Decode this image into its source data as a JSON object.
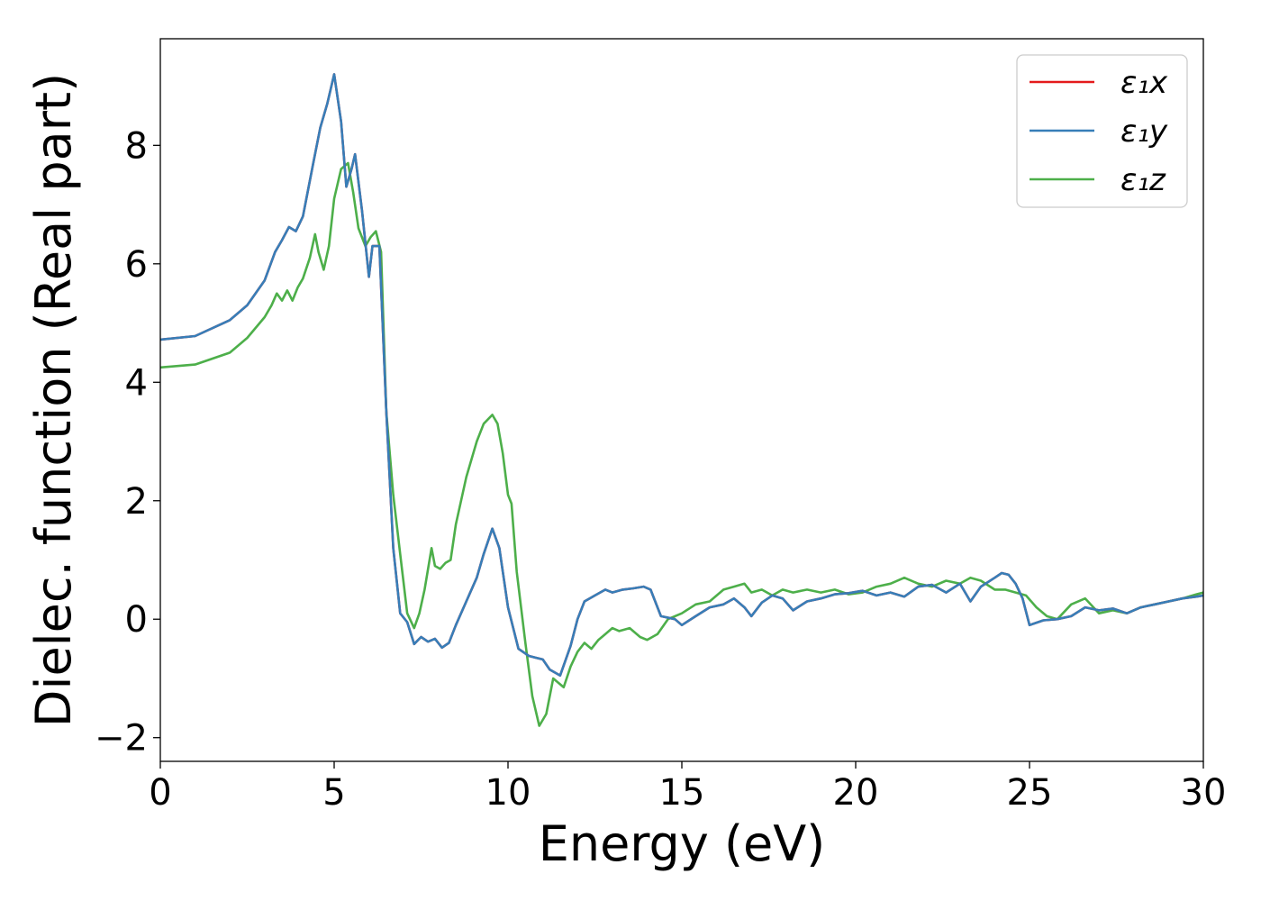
{
  "chart_data": {
    "type": "line",
    "xlabel": "Energy (eV)",
    "ylabel": "Dielec. function (Real part)",
    "xlim": [
      0,
      30
    ],
    "ylim": [
      -2.4,
      9.8
    ],
    "xticks": [
      0,
      5,
      10,
      15,
      20,
      25,
      30
    ],
    "xtick_labels": [
      "0",
      "5",
      "10",
      "15",
      "20",
      "25",
      "30"
    ],
    "yticks": [
      -2,
      0,
      2,
      4,
      6,
      8
    ],
    "ytick_labels": [
      "−2",
      "0",
      "2",
      "4",
      "6",
      "8"
    ],
    "grid": false,
    "legend_position": "top-right",
    "series": [
      {
        "name": "ε₁x",
        "color": "#e41a1c",
        "x": [
          0,
          1,
          2,
          2.5,
          3,
          3.3,
          3.5,
          3.7,
          3.9,
          4.1,
          4.4,
          4.6,
          4.8,
          5,
          5.2,
          5.35,
          5.5,
          5.6,
          5.8,
          6,
          6.1,
          6.3,
          6.5,
          6.7,
          6.9,
          7.1,
          7.3,
          7.5,
          7.7,
          7.9,
          8.1,
          8.3,
          8.5,
          8.8,
          9.1,
          9.3,
          9.55,
          9.75,
          10,
          10.3,
          10.6,
          10.8,
          11,
          11.2,
          11.5,
          11.8,
          12,
          12.2,
          12.5,
          12.8,
          13,
          13.3,
          13.6,
          13.9,
          14.1,
          14.4,
          14.8,
          15,
          15.4,
          15.8,
          16.2,
          16.5,
          16.8,
          17,
          17.3,
          17.6,
          17.9,
          18.2,
          18.6,
          19,
          19.4,
          19.8,
          20.2,
          20.6,
          21,
          21.4,
          21.8,
          22.2,
          22.6,
          23,
          23.3,
          23.6,
          24,
          24.2,
          24.4,
          24.6,
          24.8,
          25,
          25.4,
          25.8,
          26.2,
          26.6,
          27,
          27.4,
          27.8,
          28.2,
          28.6,
          29,
          29.4,
          29.8,
          30
        ],
        "y": [
          4.72,
          4.78,
          5.05,
          5.3,
          5.72,
          6.2,
          6.4,
          6.62,
          6.55,
          6.8,
          7.7,
          8.3,
          8.7,
          9.2,
          8.4,
          7.3,
          7.6,
          7.85,
          6.9,
          5.78,
          6.3,
          6.3,
          3.5,
          1.2,
          0.1,
          -0.05,
          -0.42,
          -0.3,
          -0.38,
          -0.33,
          -0.48,
          -0.4,
          -0.1,
          0.3,
          0.7,
          1.1,
          1.53,
          1.2,
          0.2,
          -0.5,
          -0.62,
          -0.65,
          -0.68,
          -0.85,
          -0.95,
          -0.45,
          0,
          0.3,
          0.4,
          0.5,
          0.45,
          0.5,
          0.52,
          0.55,
          0.5,
          0.05,
          0,
          -0.1,
          0.05,
          0.2,
          0.25,
          0.35,
          0.2,
          0.05,
          0.28,
          0.4,
          0.35,
          0.15,
          0.3,
          0.35,
          0.42,
          0.44,
          0.48,
          0.4,
          0.45,
          0.38,
          0.55,
          0.58,
          0.45,
          0.6,
          0.3,
          0.55,
          0.7,
          0.78,
          0.75,
          0.6,
          0.35,
          -0.1,
          -0.02,
          0,
          0.05,
          0.2,
          0.15,
          0.18,
          0.1,
          0.2,
          0.25,
          0.3,
          0.35,
          0.38,
          0.4
        ]
      },
      {
        "name": "ε₁y",
        "color": "#377eb8",
        "x": [
          0,
          1,
          2,
          2.5,
          3,
          3.3,
          3.5,
          3.7,
          3.9,
          4.1,
          4.4,
          4.6,
          4.8,
          5,
          5.2,
          5.35,
          5.5,
          5.6,
          5.8,
          6,
          6.1,
          6.3,
          6.5,
          6.7,
          6.9,
          7.1,
          7.3,
          7.5,
          7.7,
          7.9,
          8.1,
          8.3,
          8.5,
          8.8,
          9.1,
          9.3,
          9.55,
          9.75,
          10,
          10.3,
          10.6,
          10.8,
          11,
          11.2,
          11.5,
          11.8,
          12,
          12.2,
          12.5,
          12.8,
          13,
          13.3,
          13.6,
          13.9,
          14.1,
          14.4,
          14.8,
          15,
          15.4,
          15.8,
          16.2,
          16.5,
          16.8,
          17,
          17.3,
          17.6,
          17.9,
          18.2,
          18.6,
          19,
          19.4,
          19.8,
          20.2,
          20.6,
          21,
          21.4,
          21.8,
          22.2,
          22.6,
          23,
          23.3,
          23.6,
          24,
          24.2,
          24.4,
          24.6,
          24.8,
          25,
          25.4,
          25.8,
          26.2,
          26.6,
          27,
          27.4,
          27.8,
          28.2,
          28.6,
          29,
          29.4,
          29.8,
          30
        ],
        "y": [
          4.72,
          4.78,
          5.05,
          5.3,
          5.72,
          6.2,
          6.4,
          6.62,
          6.55,
          6.8,
          7.7,
          8.3,
          8.7,
          9.2,
          8.4,
          7.3,
          7.6,
          7.85,
          6.9,
          5.78,
          6.3,
          6.3,
          3.5,
          1.2,
          0.1,
          -0.05,
          -0.42,
          -0.3,
          -0.38,
          -0.33,
          -0.48,
          -0.4,
          -0.1,
          0.3,
          0.7,
          1.1,
          1.53,
          1.2,
          0.2,
          -0.5,
          -0.62,
          -0.65,
          -0.68,
          -0.85,
          -0.95,
          -0.45,
          0,
          0.3,
          0.4,
          0.5,
          0.45,
          0.5,
          0.52,
          0.55,
          0.5,
          0.05,
          0,
          -0.1,
          0.05,
          0.2,
          0.25,
          0.35,
          0.2,
          0.05,
          0.28,
          0.4,
          0.35,
          0.15,
          0.3,
          0.35,
          0.42,
          0.44,
          0.48,
          0.4,
          0.45,
          0.38,
          0.55,
          0.58,
          0.45,
          0.6,
          0.3,
          0.55,
          0.7,
          0.78,
          0.75,
          0.6,
          0.35,
          -0.1,
          -0.02,
          0,
          0.05,
          0.2,
          0.15,
          0.18,
          0.1,
          0.2,
          0.25,
          0.3,
          0.35,
          0.38,
          0.4
        ]
      },
      {
        "name": "ε₁z",
        "color": "#4daf4a",
        "x": [
          0,
          1,
          2,
          2.5,
          3,
          3.2,
          3.35,
          3.5,
          3.65,
          3.8,
          3.95,
          4.1,
          4.3,
          4.45,
          4.55,
          4.7,
          4.85,
          5,
          5.2,
          5.4,
          5.55,
          5.7,
          5.9,
          6.05,
          6.2,
          6.35,
          6.5,
          6.7,
          6.9,
          7.1,
          7.3,
          7.45,
          7.6,
          7.8,
          7.9,
          8.05,
          8.2,
          8.35,
          8.5,
          8.8,
          9.1,
          9.3,
          9.55,
          9.7,
          9.85,
          10,
          10.1,
          10.25,
          10.5,
          10.7,
          10.9,
          11.1,
          11.3,
          11.6,
          11.8,
          12,
          12.2,
          12.4,
          12.6,
          12.8,
          13,
          13.2,
          13.5,
          13.8,
          14,
          14.3,
          14.6,
          14.8,
          15,
          15.4,
          15.8,
          16.2,
          16.5,
          16.8,
          17,
          17.3,
          17.6,
          17.9,
          18.2,
          18.6,
          19,
          19.4,
          19.8,
          20.2,
          20.6,
          21,
          21.4,
          21.8,
          22.2,
          22.6,
          23,
          23.3,
          23.6,
          24,
          24.3,
          24.6,
          24.9,
          25.2,
          25.5,
          25.8,
          26.2,
          26.6,
          27,
          27.4,
          27.8,
          28.2,
          28.6,
          29,
          29.4,
          29.8,
          30
        ],
        "y": [
          4.25,
          4.3,
          4.5,
          4.75,
          5.1,
          5.3,
          5.5,
          5.38,
          5.55,
          5.38,
          5.6,
          5.75,
          6.1,
          6.5,
          6.2,
          5.9,
          6.3,
          7.1,
          7.6,
          7.7,
          7.2,
          6.6,
          6.3,
          6.45,
          6.55,
          6.2,
          3.5,
          2.1,
          1.1,
          0.1,
          -0.15,
          0.1,
          0.5,
          1.2,
          0.9,
          0.85,
          0.95,
          1.0,
          1.6,
          2.4,
          3.0,
          3.3,
          3.45,
          3.3,
          2.8,
          2.1,
          1.95,
          0.8,
          -0.4,
          -1.3,
          -1.8,
          -1.6,
          -1.0,
          -1.15,
          -0.8,
          -0.55,
          -0.4,
          -0.5,
          -0.35,
          -0.25,
          -0.15,
          -0.2,
          -0.15,
          -0.3,
          -0.35,
          -0.25,
          0,
          0.05,
          0.1,
          0.25,
          0.3,
          0.5,
          0.55,
          0.6,
          0.45,
          0.5,
          0.4,
          0.5,
          0.45,
          0.5,
          0.45,
          0.5,
          0.42,
          0.45,
          0.55,
          0.6,
          0.7,
          0.6,
          0.55,
          0.65,
          0.6,
          0.7,
          0.65,
          0.5,
          0.5,
          0.45,
          0.4,
          0.2,
          0.05,
          0,
          0.25,
          0.35,
          0.1,
          0.15,
          0.1,
          0.2,
          0.25,
          0.3,
          0.35,
          0.42,
          0.45
        ]
      }
    ]
  }
}
